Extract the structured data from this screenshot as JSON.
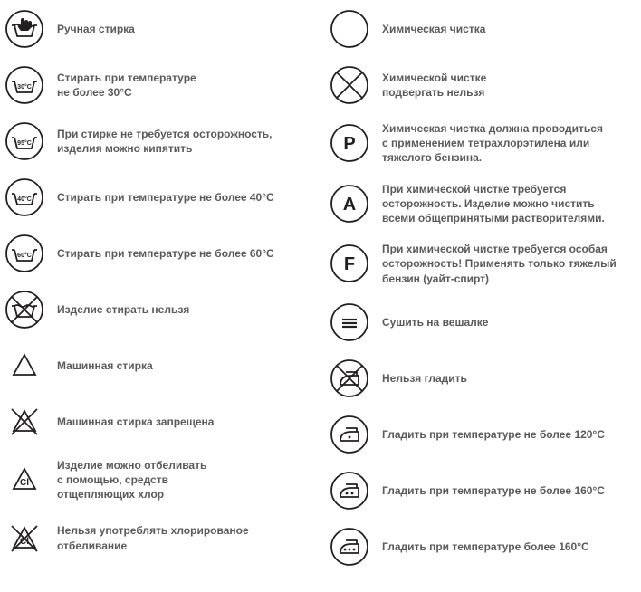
{
  "iconStroke": "#231f20",
  "iconStrokeWidth": 1.8,
  "textColor": "#5a5a5a",
  "fontSize": 12,
  "circleRadius": 20,
  "col1": [
    {
      "icon": "wash-hand",
      "label": "Ручная стирка"
    },
    {
      "icon": "wash-30",
      "label": "Стирать при температуре\nне более 30°С",
      "temp": "30°C"
    },
    {
      "icon": "wash-95",
      "label": "При стирке не требуется осторожность,\nизделия можно кипятить",
      "temp": "95°C"
    },
    {
      "icon": "wash-40",
      "label": "Стирать при температуре не более 40°С",
      "temp": "40°C"
    },
    {
      "icon": "wash-60",
      "label": "Стирать при температуре не более 60°С",
      "temp": "60°C"
    },
    {
      "icon": "wash-no",
      "label": "Изделие стирать нельзя"
    },
    {
      "icon": "triangle",
      "label": "Машинная стирка"
    },
    {
      "icon": "triangle-no",
      "label": "Машинная стирка запрещена"
    },
    {
      "icon": "triangle-cl",
      "label": "Изделие можно отбеливать\nс помощью, средств\nотщепляющих хлор",
      "letter": "Cl"
    },
    {
      "icon": "triangle-cl-no",
      "label": "Нельзя употреблять хлорированое\nотбеливание",
      "letter": "Cl"
    }
  ],
  "col2": [
    {
      "icon": "circle",
      "label": "Химическая чистка"
    },
    {
      "icon": "circle-no",
      "label": "Химической чистке\nподвергать нельзя"
    },
    {
      "icon": "circle-letter",
      "label": "Химическая чистка должна проводиться\nс применением тетрахлорэтилена или\nтяжелого бензина.",
      "letter": "P"
    },
    {
      "icon": "circle-letter",
      "label": "При химической чистке требуется\nосторожность. Изделие можно чистить\nвсеми общепринятыми растворителями.",
      "letter": "A"
    },
    {
      "icon": "circle-letter",
      "label": "При химической чистке требуется особая\nосторожность! Применять только тяжелый\nбензин (уайт-спирт)",
      "letter": "F"
    },
    {
      "icon": "dry-hang",
      "label": "Сушить на вешалке"
    },
    {
      "icon": "iron-no",
      "label": "Нельзя гладить"
    },
    {
      "icon": "iron-1",
      "label": "Гладить при температуре не более 120°С",
      "dots": 1
    },
    {
      "icon": "iron-2",
      "label": "Гладить при температуре не более 160°С",
      "dots": 2
    },
    {
      "icon": "iron-3",
      "label": "Гладить при температуре более 160°С",
      "dots": 3
    }
  ]
}
